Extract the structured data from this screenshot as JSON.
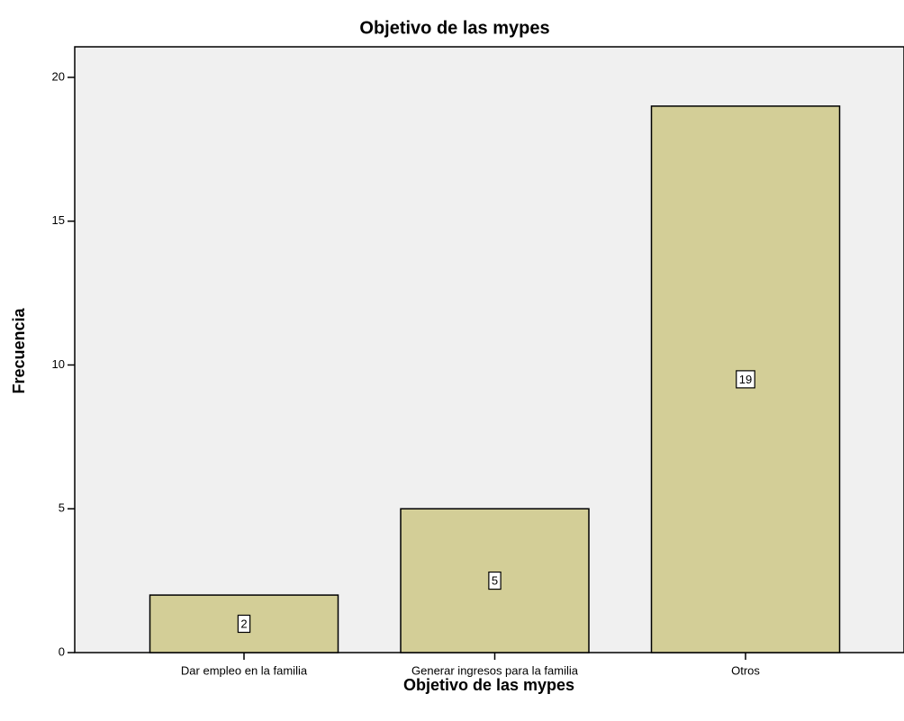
{
  "chart_data": {
    "type": "bar",
    "title": "Objetivo de las mypes",
    "x_label": "Objetivo de las mypes",
    "y_label": "Frecuencia",
    "categories": [
      "Dar empleo en la familia",
      "Generar ingresos para la familia",
      "Otros"
    ],
    "values": [
      2,
      5,
      19
    ],
    "color": "#d3ce97",
    "ylim": [
      0,
      21
    ],
    "yticks": [
      0,
      5,
      10,
      15,
      20
    ],
    "grid": false
  }
}
